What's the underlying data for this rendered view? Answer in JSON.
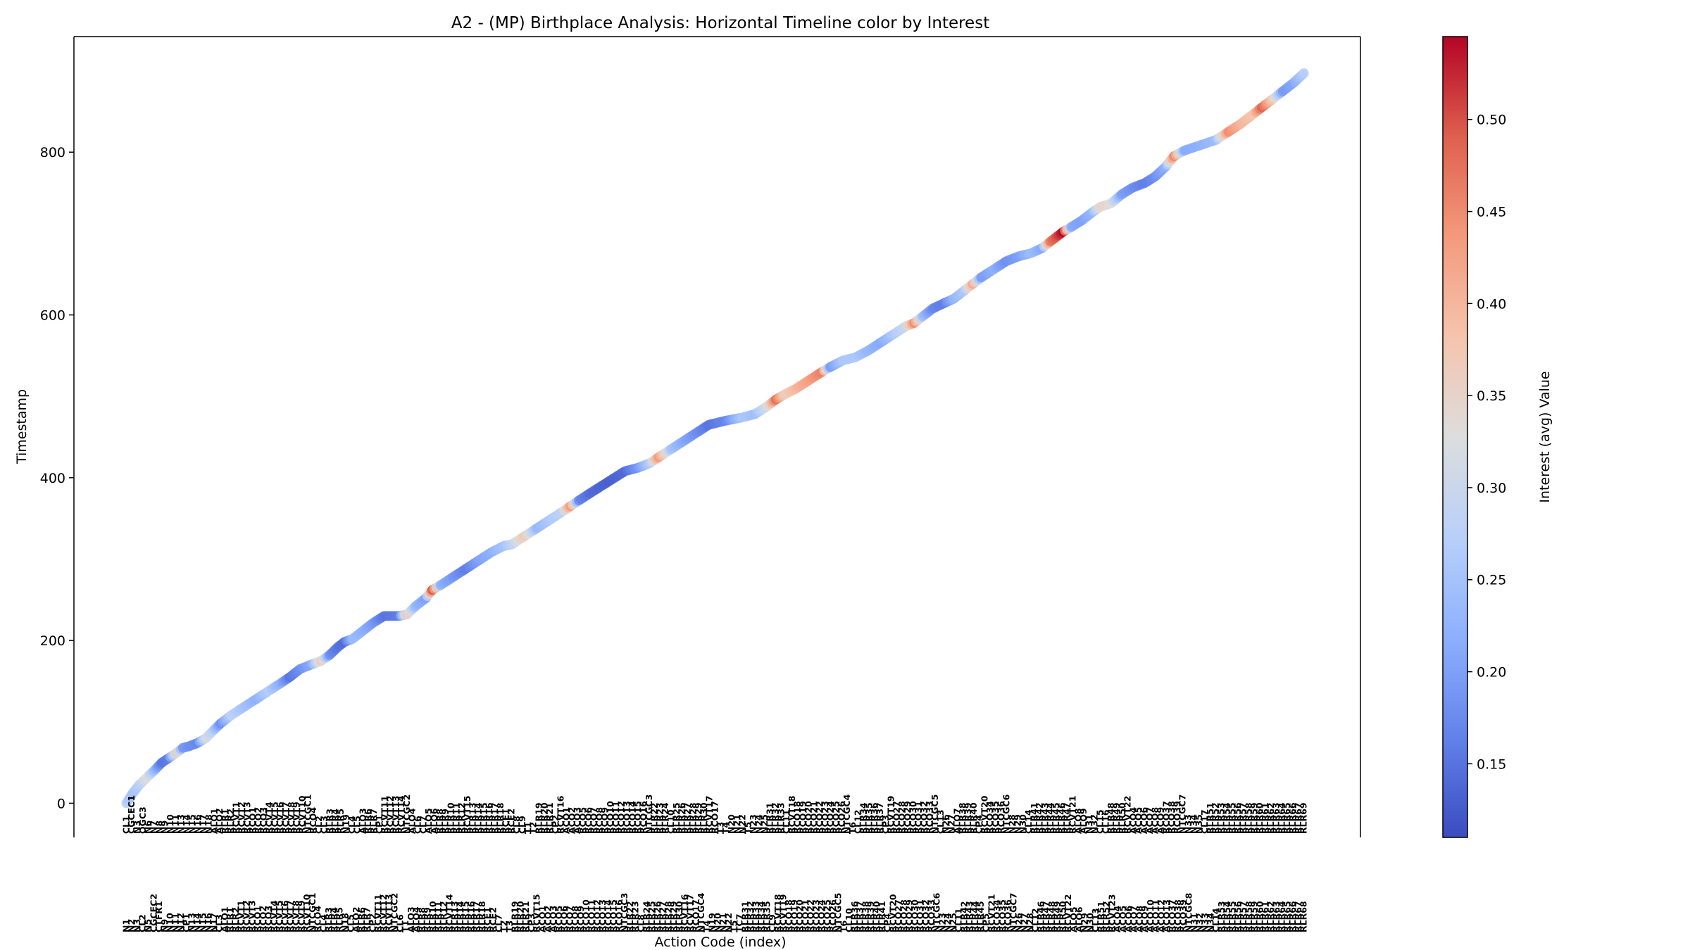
{
  "chart_data": {
    "type": "scatter",
    "title": "A2 - (MP) Birthplace Analysis: Horizontal Timeline color by Interest",
    "xlabel": "Action Code (index)",
    "ylabel": "Timestamp",
    "ylim": [
      -42,
      942
    ],
    "yticks": [
      0,
      200,
      400,
      600,
      800
    ],
    "colorbar": {
      "label": "Interest (avg) Value",
      "range": [
        0.11,
        0.545
      ],
      "ticks": [
        0.15,
        0.2,
        0.25,
        0.3,
        0.35,
        0.4,
        0.45,
        0.5
      ],
      "colormap": "coolwarm"
    },
    "legend": "none",
    "grid": false,
    "xtick_labels_row_top": [
      "CL1",
      "CGCEC1",
      "N3",
      "OGC3",
      "N6",
      "N7",
      "N8",
      "N9",
      "N10",
      "N11",
      "N13",
      "N14",
      "N15",
      "N16",
      "N17",
      "N18",
      "ALO1",
      "ALO2",
      "RLR1",
      "RLR2",
      "RCVT1",
      "RCVT2",
      "RCVT3",
      "RCO1",
      "RCO2",
      "RCO3",
      "RCVT4",
      "RCVT5",
      "RCVT6",
      "RCVT7",
      "RCVT8",
      "RCVT9",
      "RCVT10",
      "NTCGC1",
      "RCO4",
      "CL2",
      "CL3",
      "RLR3",
      "RLR4",
      "RLR5",
      "N19",
      "CL4",
      "CL5",
      "ALO3",
      "RLR6",
      "RLR7",
      "CP1",
      "RCVT11",
      "RCVT12",
      "RCVT13",
      "RCVT14",
      "NTCGC2",
      "ALO4",
      "CL6",
      "CL7",
      "ALO5",
      "ALO6",
      "RLR8",
      "RLR9",
      "RLR10",
      "RLR11",
      "RLR12",
      "RCVT15",
      "RLR13",
      "RLR14",
      "RLR15",
      "RLR16",
      "RLR17",
      "RLR18",
      "RCE1",
      "RCE2",
      "CL8",
      "CL9",
      "T1",
      "T2",
      "RLR19",
      "RLR20",
      "RLR21",
      "CP2",
      "RCVT16",
      "ACO1",
      "ACO2",
      "ACO3",
      "RCO5",
      "RCO6",
      "RCO7",
      "RCO8",
      "RCO9",
      "RCO10",
      "RCO11",
      "RCO12",
      "RCO13",
      "RCO14",
      "RCO15",
      "RCO16",
      "NTCGC3",
      "RLR22",
      "RLR23",
      "RLR24",
      "CL10",
      "RLR25",
      "RLR26",
      "RLR27",
      "RLR28",
      "RLR29",
      "RLR30",
      "RCVT17",
      "RCO17",
      "T3",
      "T4",
      "N20",
      "N21",
      "N22",
      "T5",
      "N23",
      "N24",
      "N25",
      "RLR31",
      "RLR32",
      "RLR33",
      "CL11",
      "RCVT18",
      "RCO18",
      "RCO19",
      "RCO20",
      "RCO21",
      "RCO22",
      "RCO23",
      "RCO24",
      "RCO25",
      "RCO26",
      "NTCGC4",
      "T6",
      "CL12",
      "RLR34",
      "RLR35",
      "RLR36",
      "RLR37",
      "CP3",
      "RCVT19",
      "RCO27",
      "RCO28",
      "RCO29",
      "RCO30",
      "RCO31",
      "RCO32",
      "RCO33",
      "NTCGC5",
      "CL13",
      "N26",
      "N27",
      "ALO7",
      "RLR38",
      "RLR39",
      "RLR40",
      "CP4",
      "RCVT20",
      "RCO34",
      "RCO35",
      "RCO36",
      "NTCGC6",
      "N28",
      "N29",
      "N30",
      "CL14",
      "RLR41",
      "RLR42",
      "RLR43",
      "RLR44",
      "RLR45",
      "RLR46",
      "RLR47",
      "RCVT21",
      "ALO8",
      "ALO9",
      "N31",
      "N32",
      "CL15",
      "CL16",
      "RLR48",
      "RLR49",
      "RLR50",
      "RCVT22",
      "ACO4",
      "ACO5",
      "ACO6",
      "ACO7",
      "ACO8",
      "ACO9",
      "RCO37",
      "RCO38",
      "RCO39",
      "NTCGC7",
      "N33",
      "N34",
      "N35",
      "CL17",
      "RLR51",
      "RLR52",
      "RLR53",
      "RLR54",
      "RLR55",
      "RLR56",
      "RLR57",
      "RLR58",
      "RLR59",
      "RLR60",
      "RLR61",
      "RLR62",
      "RLR63",
      "RLR64",
      "RLR65",
      "RLR66",
      "RLR67",
      "RLR69"
    ],
    "xtick_labels_row_bottom": [
      "N1",
      "N2",
      "N3",
      "CL2",
      "N5",
      "CGCEC2",
      "CTFR1",
      "N9",
      "N10",
      "N11",
      "N12",
      "CP1",
      "N13",
      "N14",
      "N15",
      "N16",
      "N17",
      "CL3",
      "ALO1",
      "RLR1",
      "RLR2",
      "RCVT1",
      "RCVT2",
      "RCVT3",
      "RCO1",
      "RCO2",
      "RCO3",
      "RCVT4",
      "RCVT5",
      "RCVT6",
      "RCVT7",
      "RCVT8",
      "RCVT9",
      "RCVT10",
      "NTCGC1",
      "RCO4",
      "CL4",
      "RLR3",
      "RLR4",
      "RLR5",
      "N18",
      "CL5",
      "ALO2",
      "RLR6",
      "RLR7",
      "CP2",
      "RCVT11",
      "RCVT12",
      "RCVT13",
      "NTCGC2",
      "CL6",
      "T1",
      "ALO3",
      "ALO4",
      "RLR8",
      "RLR9",
      "RLR10",
      "RLR11",
      "RLR12",
      "RCVT14",
      "RLR13",
      "RLR14",
      "RLR15",
      "RLR16",
      "RLR17",
      "RLR18",
      "RCE1",
      "RCE2",
      "CL7",
      "T2",
      "T3",
      "RLR19",
      "RLR20",
      "RLR21",
      "CP3",
      "RCVT15",
      "ACO1",
      "ACO2",
      "ACO3",
      "RCO5",
      "RCO6",
      "RCO7",
      "RCO8",
      "RCO9",
      "RCO10",
      "RCO11",
      "RCO12",
      "RCO13",
      "RCO14",
      "RCO15",
      "RCO16",
      "NTCGC3",
      "RLR22",
      "RLR23",
      "CL8",
      "RLR24",
      "RLR25",
      "RLR26",
      "RLR27",
      "RLR28",
      "RLR29",
      "RLR30",
      "RCVT16",
      "RCVT17",
      "RCO17",
      "NTCGC4",
      "T4",
      "N19",
      "N20",
      "N21",
      "N22",
      "T5",
      "TC7",
      "RLR31",
      "RLR32",
      "RLR33",
      "RLR34",
      "RLR35",
      "CL9",
      "RCVT18",
      "RCVT19",
      "RCO18",
      "RCO19",
      "RCO20",
      "RCO21",
      "RCO22",
      "RCO23",
      "RCO24",
      "RCO25",
      "RCO26",
      "NTCGC5",
      "T6",
      "CL10",
      "RLR36",
      "RLR37",
      "RLR38",
      "RLR39",
      "RLR40",
      "RLR41",
      "CP4",
      "RCVT20",
      "RCO27",
      "RCO28",
      "RCO29",
      "RCO30",
      "RCO31",
      "RCO32",
      "RCO33",
      "NTCGC6",
      "N23",
      "N24",
      "N25",
      "CL11",
      "RLR42",
      "RLR43",
      "RLR44",
      "RLR45",
      "CP5",
      "RCVT21",
      "RCO34",
      "RCO35",
      "RCO36",
      "NTCGC7",
      "N26",
      "N27",
      "N28",
      "CL12",
      "RLR46",
      "RLR47",
      "RLR48",
      "RLR49",
      "RLR50",
      "RCVT22",
      "ALO5",
      "ALO6",
      "N29",
      "N30",
      "CL13",
      "RLR51",
      "RLR52",
      "RCVT23",
      "ACO4",
      "ACO5",
      "ACO6",
      "ACO7",
      "ACO8",
      "ACO9",
      "ACO10",
      "ACO11",
      "ACO12",
      "ACO13",
      "RCO37",
      "RCO38",
      "RCO39",
      "NTCGC8",
      "N31",
      "N32",
      "N33",
      "N34",
      "CL14",
      "RLR53",
      "RLR54",
      "RLR55",
      "RLR56",
      "RLR57",
      "RLR58",
      "RLR59",
      "RLR60",
      "RLR61",
      "RLR62",
      "RLR63",
      "RLR64",
      "RLR65",
      "RLR66",
      "RLR67",
      "RLR68"
    ],
    "anchors": [
      {
        "x": 0,
        "y": 0,
        "v": 0.27
      },
      {
        "x": 3,
        "y": 12,
        "v": 0.25
      },
      {
        "x": 6,
        "y": 22,
        "v": 0.27
      },
      {
        "x": 10,
        "y": 32,
        "v": 0.33
      },
      {
        "x": 14,
        "y": 42,
        "v": 0.22
      },
      {
        "x": 17,
        "y": 50,
        "v": 0.15
      },
      {
        "x": 20,
        "y": 55,
        "v": 0.16
      },
      {
        "x": 24,
        "y": 62,
        "v": 0.36
      },
      {
        "x": 27,
        "y": 68,
        "v": 0.19
      },
      {
        "x": 30,
        "y": 70,
        "v": 0.18
      },
      {
        "x": 34,
        "y": 74,
        "v": 0.17
      },
      {
        "x": 38,
        "y": 80,
        "v": 0.32
      },
      {
        "x": 41,
        "y": 88,
        "v": 0.28
      },
      {
        "x": 45,
        "y": 98,
        "v": 0.18
      },
      {
        "x": 50,
        "y": 108,
        "v": 0.28
      },
      {
        "x": 56,
        "y": 118,
        "v": 0.25
      },
      {
        "x": 62,
        "y": 128,
        "v": 0.22
      },
      {
        "x": 68,
        "y": 138,
        "v": 0.27
      },
      {
        "x": 74,
        "y": 148,
        "v": 0.21
      },
      {
        "x": 78,
        "y": 155,
        "v": 0.15
      },
      {
        "x": 83,
        "y": 165,
        "v": 0.18
      },
      {
        "x": 88,
        "y": 170,
        "v": 0.21
      },
      {
        "x": 93,
        "y": 175,
        "v": 0.37
      },
      {
        "x": 97,
        "y": 182,
        "v": 0.18
      },
      {
        "x": 101,
        "y": 192,
        "v": 0.15
      },
      {
        "x": 104,
        "y": 198,
        "v": 0.14
      },
      {
        "x": 108,
        "y": 202,
        "v": 0.24
      },
      {
        "x": 113,
        "y": 212,
        "v": 0.22
      },
      {
        "x": 118,
        "y": 222,
        "v": 0.19
      },
      {
        "x": 123,
        "y": 230,
        "v": 0.15
      },
      {
        "x": 130,
        "y": 230,
        "v": 0.16
      },
      {
        "x": 134,
        "y": 232,
        "v": 0.37
      },
      {
        "x": 138,
        "y": 242,
        "v": 0.23
      },
      {
        "x": 143,
        "y": 252,
        "v": 0.2
      },
      {
        "x": 146,
        "y": 262,
        "v": 0.5
      },
      {
        "x": 150,
        "y": 268,
        "v": 0.22
      },
      {
        "x": 156,
        "y": 278,
        "v": 0.19
      },
      {
        "x": 162,
        "y": 288,
        "v": 0.16
      },
      {
        "x": 168,
        "y": 298,
        "v": 0.2
      },
      {
        "x": 174,
        "y": 308,
        "v": 0.22
      },
      {
        "x": 180,
        "y": 316,
        "v": 0.25
      },
      {
        "x": 184,
        "y": 318,
        "v": 0.28
      },
      {
        "x": 190,
        "y": 328,
        "v": 0.37
      },
      {
        "x": 196,
        "y": 338,
        "v": 0.23
      },
      {
        "x": 202,
        "y": 348,
        "v": 0.26
      },
      {
        "x": 208,
        "y": 358,
        "v": 0.28
      },
      {
        "x": 212,
        "y": 365,
        "v": 0.44
      },
      {
        "x": 216,
        "y": 372,
        "v": 0.17
      },
      {
        "x": 222,
        "y": 382,
        "v": 0.14
      },
      {
        "x": 230,
        "y": 395,
        "v": 0.13
      },
      {
        "x": 238,
        "y": 408,
        "v": 0.14
      },
      {
        "x": 244,
        "y": 412,
        "v": 0.19
      },
      {
        "x": 250,
        "y": 418,
        "v": 0.27
      },
      {
        "x": 254,
        "y": 425,
        "v": 0.44
      },
      {
        "x": 260,
        "y": 435,
        "v": 0.25
      },
      {
        "x": 266,
        "y": 445,
        "v": 0.21
      },
      {
        "x": 272,
        "y": 455,
        "v": 0.18
      },
      {
        "x": 278,
        "y": 465,
        "v": 0.15
      },
      {
        "x": 286,
        "y": 470,
        "v": 0.17
      },
      {
        "x": 294,
        "y": 474,
        "v": 0.26
      },
      {
        "x": 300,
        "y": 478,
        "v": 0.24
      },
      {
        "x": 306,
        "y": 488,
        "v": 0.32
      },
      {
        "x": 310,
        "y": 496,
        "v": 0.48
      },
      {
        "x": 314,
        "y": 502,
        "v": 0.36
      },
      {
        "x": 320,
        "y": 510,
        "v": 0.4
      },
      {
        "x": 326,
        "y": 520,
        "v": 0.43
      },
      {
        "x": 332,
        "y": 530,
        "v": 0.46
      },
      {
        "x": 336,
        "y": 536,
        "v": 0.19
      },
      {
        "x": 342,
        "y": 544,
        "v": 0.26
      },
      {
        "x": 348,
        "y": 548,
        "v": 0.26
      },
      {
        "x": 354,
        "y": 556,
        "v": 0.23
      },
      {
        "x": 360,
        "y": 566,
        "v": 0.21
      },
      {
        "x": 366,
        "y": 576,
        "v": 0.26
      },
      {
        "x": 372,
        "y": 586,
        "v": 0.3
      },
      {
        "x": 376,
        "y": 590,
        "v": 0.45
      },
      {
        "x": 380,
        "y": 598,
        "v": 0.24
      },
      {
        "x": 385,
        "y": 608,
        "v": 0.17
      },
      {
        "x": 390,
        "y": 614,
        "v": 0.16
      },
      {
        "x": 395,
        "y": 620,
        "v": 0.23
      },
      {
        "x": 400,
        "y": 630,
        "v": 0.26
      },
      {
        "x": 404,
        "y": 638,
        "v": 0.42
      },
      {
        "x": 408,
        "y": 646,
        "v": 0.19
      },
      {
        "x": 414,
        "y": 656,
        "v": 0.22
      },
      {
        "x": 420,
        "y": 666,
        "v": 0.18
      },
      {
        "x": 426,
        "y": 672,
        "v": 0.2
      },
      {
        "x": 432,
        "y": 676,
        "v": 0.24
      },
      {
        "x": 437,
        "y": 682,
        "v": 0.21
      },
      {
        "x": 441,
        "y": 690,
        "v": 0.47
      },
      {
        "x": 444,
        "y": 696,
        "v": 0.5
      },
      {
        "x": 447,
        "y": 702,
        "v": 0.545
      },
      {
        "x": 451,
        "y": 708,
        "v": 0.21
      },
      {
        "x": 456,
        "y": 716,
        "v": 0.2
      },
      {
        "x": 461,
        "y": 726,
        "v": 0.23
      },
      {
        "x": 465,
        "y": 733,
        "v": 0.35
      },
      {
        "x": 470,
        "y": 737,
        "v": 0.33
      },
      {
        "x": 475,
        "y": 748,
        "v": 0.2
      },
      {
        "x": 480,
        "y": 756,
        "v": 0.18
      },
      {
        "x": 486,
        "y": 762,
        "v": 0.16
      },
      {
        "x": 491,
        "y": 770,
        "v": 0.18
      },
      {
        "x": 496,
        "y": 782,
        "v": 0.22
      },
      {
        "x": 500,
        "y": 795,
        "v": 0.46
      },
      {
        "x": 505,
        "y": 802,
        "v": 0.21
      },
      {
        "x": 512,
        "y": 808,
        "v": 0.22
      },
      {
        "x": 520,
        "y": 815,
        "v": 0.24
      },
      {
        "x": 526,
        "y": 825,
        "v": 0.45
      },
      {
        "x": 532,
        "y": 835,
        "v": 0.4
      },
      {
        "x": 538,
        "y": 847,
        "v": 0.38
      },
      {
        "x": 542,
        "y": 855,
        "v": 0.49
      },
      {
        "x": 547,
        "y": 865,
        "v": 0.37
      },
      {
        "x": 552,
        "y": 875,
        "v": 0.19
      },
      {
        "x": 557,
        "y": 885,
        "v": 0.21
      },
      {
        "x": 562,
        "y": 897,
        "v": 0.27
      }
    ],
    "xlim": [
      -25,
      589
    ]
  }
}
